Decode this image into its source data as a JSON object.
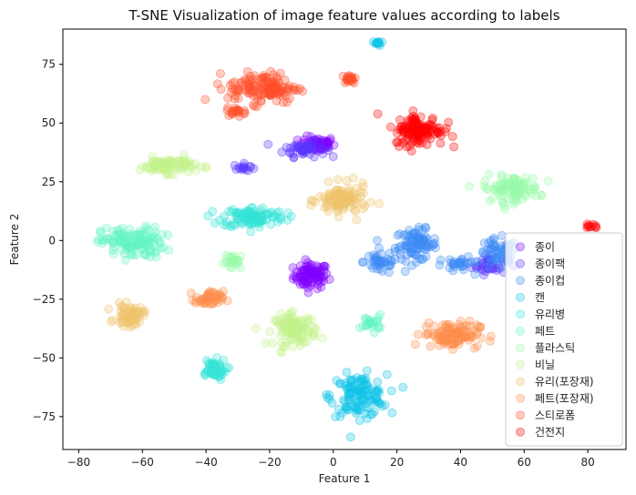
{
  "chart_data": {
    "type": "scatter",
    "title": "T-SNE Visualization of image feature values according to labels",
    "xlabel": "Feature 1",
    "ylabel": "Feature 2",
    "xlim": [
      -85,
      92
    ],
    "ylim": [
      -89,
      90
    ],
    "xticks": [
      -80,
      -60,
      -40,
      -20,
      0,
      20,
      40,
      60,
      80
    ],
    "xtick_labels": [
      "−80",
      "−60",
      "−40",
      "−20",
      "0",
      "20",
      "40",
      "60",
      "80"
    ],
    "yticks": [
      -75,
      -50,
      -25,
      0,
      25,
      50,
      75
    ],
    "ytick_labels": [
      "−75",
      "−50",
      "−25",
      "0",
      "25",
      "50",
      "75"
    ],
    "grid": false,
    "legend_position": "lower-right",
    "series": [
      {
        "name": "종이",
        "color": "#8000ff",
        "clusters": [
          {
            "cx": -7,
            "cy": -15,
            "rx": 5,
            "ry": 5,
            "n": 90
          },
          {
            "cx": -5,
            "cy": 41,
            "rx": 5,
            "ry": 3,
            "n": 60
          }
        ]
      },
      {
        "name": "종이팩",
        "color": "#5a36fe",
        "clusters": [
          {
            "cx": -9,
            "cy": 39,
            "rx": 6,
            "ry": 3,
            "n": 50
          },
          {
            "cx": -28,
            "cy": 31,
            "rx": 3,
            "ry": 1.5,
            "n": 15
          },
          {
            "cx": 49,
            "cy": -10,
            "rx": 5,
            "ry": 4,
            "n": 40
          }
        ]
      },
      {
        "name": "종이컵",
        "color": "#3d8af6",
        "clusters": [
          {
            "cx": 26,
            "cy": -2,
            "rx": 6,
            "ry": 6,
            "n": 90
          },
          {
            "cx": 15,
            "cy": -9,
            "rx": 5,
            "ry": 5,
            "n": 40
          },
          {
            "cx": 52,
            "cy": -6,
            "rx": 6,
            "ry": 6,
            "n": 60
          },
          {
            "cx": 40,
            "cy": -10,
            "rx": 4,
            "ry": 3,
            "n": 25
          }
        ]
      },
      {
        "name": "캔",
        "color": "#10c3e8",
        "clusters": [
          {
            "cx": 8,
            "cy": -66,
            "rx": 8,
            "ry": 8,
            "n": 130
          },
          {
            "cx": 14,
            "cy": 84,
            "rx": 1.5,
            "ry": 1,
            "n": 12
          }
        ]
      },
      {
        "name": "유리병",
        "color": "#34e4d8",
        "clusters": [
          {
            "cx": -25,
            "cy": 10,
            "rx": 9,
            "ry": 4,
            "n": 110
          },
          {
            "cx": -38,
            "cy": -55,
            "rx": 4,
            "ry": 4,
            "n": 50
          }
        ]
      },
      {
        "name": "페트",
        "color": "#64f6c4",
        "clusters": [
          {
            "cx": -63,
            "cy": -1,
            "rx": 9,
            "ry": 6,
            "n": 130
          },
          {
            "cx": 12,
            "cy": -35,
            "rx": 3,
            "ry": 3,
            "n": 25
          }
        ]
      },
      {
        "name": "플라스틱",
        "color": "#98fca9",
        "clusters": [
          {
            "cx": 56,
            "cy": 22,
            "rx": 8,
            "ry": 5,
            "n": 100
          },
          {
            "cx": -31,
            "cy": -9,
            "rx": 3,
            "ry": 3,
            "n": 25
          }
        ]
      },
      {
        "name": "비닐",
        "color": "#c4f38b",
        "clusters": [
          {
            "cx": -12,
            "cy": -38,
            "rx": 6,
            "ry": 6,
            "n": 110
          },
          {
            "cx": -52,
            "cy": 32,
            "rx": 8,
            "ry": 3,
            "n": 90
          }
        ]
      },
      {
        "name": "유리(포장재)",
        "color": "#efc46b",
        "clusters": [
          {
            "cx": 3,
            "cy": 17,
            "rx": 7,
            "ry": 6,
            "n": 110
          },
          {
            "cx": -64,
            "cy": -32,
            "rx": 4,
            "ry": 4,
            "n": 60
          }
        ]
      },
      {
        "name": "페트(포장재)",
        "color": "#fe8e4c",
        "clusters": [
          {
            "cx": 37,
            "cy": -40,
            "rx": 8,
            "ry": 5,
            "n": 110
          },
          {
            "cx": -39,
            "cy": -25,
            "rx": 4,
            "ry": 3,
            "n": 50
          }
        ]
      },
      {
        "name": "스티로폼",
        "color": "#ff502a",
        "clusters": [
          {
            "cx": -22,
            "cy": 65,
            "rx": 10,
            "ry": 6,
            "n": 140
          },
          {
            "cx": 5,
            "cy": 69,
            "rx": 2,
            "ry": 2,
            "n": 20
          },
          {
            "cx": -30,
            "cy": 55,
            "rx": 3,
            "ry": 1.5,
            "n": 20
          }
        ]
      },
      {
        "name": "건전지",
        "color": "#ff0000",
        "clusters": [
          {
            "cx": 27,
            "cy": 47,
            "rx": 7,
            "ry": 6,
            "n": 130
          },
          {
            "cx": 81,
            "cy": 6,
            "rx": 2,
            "ry": 1,
            "n": 10
          }
        ]
      }
    ]
  }
}
